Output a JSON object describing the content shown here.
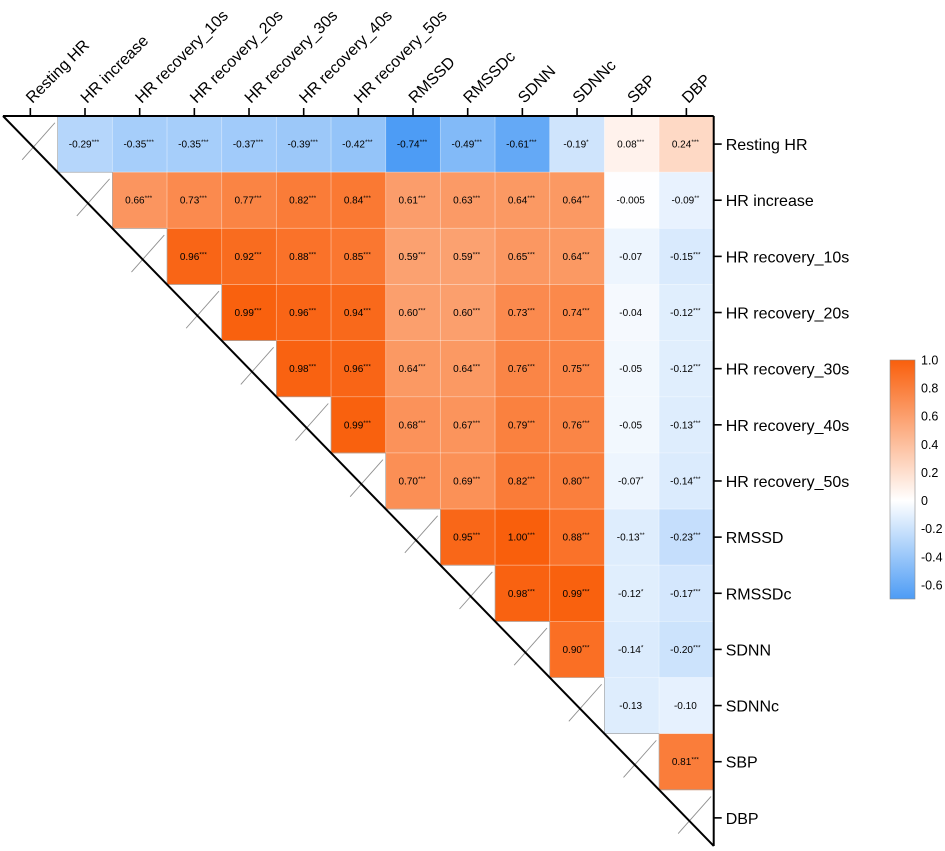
{
  "chart_data": {
    "type": "heatmap",
    "title": "",
    "variables": [
      "Resting HR",
      "HR increase",
      "HR recovery_10s",
      "HR recovery_20s",
      "HR recovery_30s",
      "HR recovery_40s",
      "HR recovery_50s",
      "RMSSD",
      "RMSSDc",
      "SDNN",
      "SDNNc",
      "SBP",
      "DBP"
    ],
    "cells": [
      [
        "",
        "-0.29",
        "-0.35",
        "-0.35",
        "-0.37",
        "-0.39",
        "-0.42",
        "-0.74",
        "-0.49",
        "-0.61",
        "-0.19",
        "0.08",
        "0.24"
      ],
      [
        "",
        "",
        "0.66",
        "0.73",
        "0.77",
        "0.82",
        "0.84",
        "0.61",
        "0.63",
        "0.64",
        "0.64",
        "-0.005",
        "-0.09"
      ],
      [
        "",
        "",
        "",
        "0.96",
        "0.92",
        "0.88",
        "0.85",
        "0.59",
        "0.59",
        "0.65",
        "0.64",
        "-0.07",
        "-0.15"
      ],
      [
        "",
        "",
        "",
        "",
        "0.99",
        "0.96",
        "0.94",
        "0.60",
        "0.60",
        "0.73",
        "0.74",
        "-0.04",
        "-0.12"
      ],
      [
        "",
        "",
        "",
        "",
        "",
        "0.98",
        "0.96",
        "0.64",
        "0.64",
        "0.76",
        "0.75",
        "-0.05",
        "-0.12"
      ],
      [
        "",
        "",
        "",
        "",
        "",
        "",
        "0.99",
        "0.68",
        "0.67",
        "0.79",
        "0.76",
        "-0.05",
        "-0.13"
      ],
      [
        "",
        "",
        "",
        "",
        "",
        "",
        "",
        "0.70",
        "0.69",
        "0.82",
        "0.80",
        "-0.07",
        "-0.14"
      ],
      [
        "",
        "",
        "",
        "",
        "",
        "",
        "",
        "",
        "0.95",
        "1.00",
        "0.88",
        "-0.13",
        "-0.23"
      ],
      [
        "",
        "",
        "",
        "",
        "",
        "",
        "",
        "",
        "",
        "0.98",
        "0.99",
        "-0.12",
        "-0.17"
      ],
      [
        "",
        "",
        "",
        "",
        "",
        "",
        "",
        "",
        "",
        "",
        "0.90",
        "-0.14",
        "-0.20"
      ],
      [
        "",
        "",
        "",
        "",
        "",
        "",
        "",
        "",
        "",
        "",
        "",
        "-0.13",
        "-0.10"
      ],
      [
        "",
        "",
        "",
        "",
        "",
        "",
        "",
        "",
        "",
        "",
        "",
        "",
        "0.81"
      ],
      [
        "",
        "",
        "",
        "",
        "",
        "",
        "",
        "",
        "",
        "",
        "",
        "",
        ""
      ]
    ],
    "significance": [
      [
        "",
        "***",
        "***",
        "***",
        "***",
        "***",
        "***",
        "***",
        "***",
        "***",
        "*",
        "***",
        "***"
      ],
      [
        "",
        "",
        "***",
        "***",
        "***",
        "***",
        "***",
        "***",
        "***",
        "***",
        "***",
        "",
        "**"
      ],
      [
        "",
        "",
        "",
        "***",
        "***",
        "***",
        "***",
        "***",
        "***",
        "***",
        "***",
        "",
        "***"
      ],
      [
        "",
        "",
        "",
        "",
        "***",
        "***",
        "***",
        "***",
        "***",
        "***",
        "***",
        "",
        "***"
      ],
      [
        "",
        "",
        "",
        "",
        "",
        "***",
        "***",
        "***",
        "***",
        "***",
        "***",
        "",
        "***"
      ],
      [
        "",
        "",
        "",
        "",
        "",
        "",
        "***",
        "***",
        "***",
        "***",
        "***",
        "",
        "***"
      ],
      [
        "",
        "",
        "",
        "",
        "",
        "",
        "",
        "***",
        "***",
        "***",
        "***",
        "*",
        "***"
      ],
      [
        "",
        "",
        "",
        "",
        "",
        "",
        "",
        "",
        "***",
        "***",
        "***",
        "**",
        "***"
      ],
      [
        "",
        "",
        "",
        "",
        "",
        "",
        "",
        "",
        "",
        "***",
        "***",
        "*",
        "***"
      ],
      [
        "",
        "",
        "",
        "",
        "",
        "",
        "",
        "",
        "",
        "",
        "***",
        "*",
        "***"
      ],
      [
        "",
        "",
        "",
        "",
        "",
        "",
        "",
        "",
        "",
        "",
        "",
        "",
        ""
      ],
      [
        "",
        "",
        "",
        "",
        "",
        "",
        "",
        "",
        "",
        "",
        "",
        "",
        "***"
      ],
      [
        "",
        "",
        "",
        "",
        "",
        "",
        "",
        "",
        "",
        "",
        "",
        "",
        ""
      ]
    ],
    "colorbar": {
      "min": -0.7,
      "max": 1.0,
      "ticks": [
        "1.0",
        "0.8",
        "0.6",
        "0.4",
        "0.2",
        "0",
        "-0.2",
        "-0.4",
        "-0.6"
      ],
      "tick_values": [
        1.0,
        0.8,
        0.6,
        0.4,
        0.2,
        0,
        -0.2,
        -0.4,
        -0.6
      ],
      "high_color": "#f95f0c",
      "mid_color": "#ffffff",
      "low_color": "#4d9cf5"
    },
    "legend_position": "right"
  }
}
